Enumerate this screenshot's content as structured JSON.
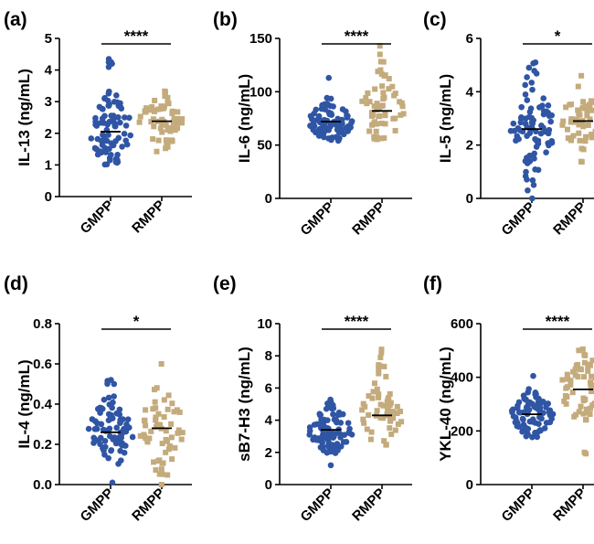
{
  "figure": {
    "colors": {
      "GMPP": "#2f55a4",
      "RMPP": "#c4ab7c",
      "axis": "#000000"
    }
  },
  "chart_data": [
    {
      "panel": "(a)",
      "type": "scatter",
      "categories": [
        "GMPP",
        "RMPP"
      ],
      "ylabel": "IL-13 (ng/mL)",
      "ylim": [
        0,
        5
      ],
      "yticks": [
        0,
        1,
        2,
        3,
        4,
        5
      ],
      "ytick_labels": [
        "0",
        "1",
        "2",
        "3",
        "4",
        "5"
      ],
      "series": [
        {
          "name": "GMPP",
          "median": 2.05,
          "range": [
            1.0,
            4.35
          ],
          "n": 85,
          "outliers": [
            4.35,
            4.25,
            4.2,
            3.2,
            3.1
          ]
        },
        {
          "name": "RMPP",
          "median": 2.38,
          "range": [
            1.05,
            3.45
          ],
          "n": 60,
          "outliers": []
        }
      ],
      "significance": "****"
    },
    {
      "panel": "(b)",
      "type": "scatter",
      "categories": [
        "GMPP",
        "RMPP"
      ],
      "ylabel": "IL-6 (ng/mL)",
      "ylim": [
        0,
        150
      ],
      "yticks": [
        0,
        50,
        100,
        150
      ],
      "ytick_labels": [
        "0",
        "50",
        "100",
        "150"
      ],
      "series": [
        {
          "name": "GMPP",
          "median": 72,
          "range": [
            54,
            113
          ],
          "n": 85,
          "outliers": [
            113
          ]
        },
        {
          "name": "RMPP",
          "median": 82,
          "range": [
            55,
            143
          ],
          "n": 60,
          "outliers": [
            143,
            135,
            128
          ]
        }
      ],
      "significance": "****"
    },
    {
      "panel": "(c)",
      "type": "scatter",
      "categories": [
        "GMPP",
        "RMPP"
      ],
      "ylabel": "IL-5 (ng/mL)",
      "ylim": [
        0,
        6
      ],
      "yticks": [
        0,
        2,
        4,
        6
      ],
      "ytick_labels": [
        "0",
        "2",
        "4",
        "6"
      ],
      "series": [
        {
          "name": "GMPP",
          "median": 2.6,
          "range": [
            0.0,
            5.1
          ],
          "n": 85,
          "outliers": [
            5.1,
            4.9,
            0.0,
            0.3
          ]
        },
        {
          "name": "RMPP",
          "median": 2.9,
          "range": [
            1.3,
            4.6
          ],
          "n": 60,
          "outliers": [
            4.6
          ]
        }
      ],
      "significance": "*"
    },
    {
      "panel": "(d)",
      "type": "scatter",
      "categories": [
        "GMPP",
        "RMPP"
      ],
      "ylabel": "IL-4 (ng/mL)",
      "ylim": [
        0,
        0.8
      ],
      "yticks": [
        0,
        0.2,
        0.4,
        0.6,
        0.8
      ],
      "ytick_labels": [
        "0.0",
        "0.2",
        "0.4",
        "0.6",
        "0.8"
      ],
      "series": [
        {
          "name": "GMPP",
          "median": 0.26,
          "range": [
            0.01,
            0.52
          ],
          "n": 85,
          "outliers": [
            0.52,
            0.5,
            0.01
          ]
        },
        {
          "name": "RMPP",
          "median": 0.28,
          "range": [
            0.0,
            0.6
          ],
          "n": 60,
          "outliers": [
            0.6,
            0.0
          ]
        }
      ],
      "significance": "*"
    },
    {
      "panel": "(e)",
      "type": "scatter",
      "categories": [
        "GMPP",
        "RMPP"
      ],
      "ylabel": "sB7-H3 (ng/mL)",
      "ylim": [
        0,
        10
      ],
      "yticks": [
        0,
        2,
        4,
        6,
        8,
        10
      ],
      "ytick_labels": [
        "0",
        "2",
        "4",
        "6",
        "8",
        "10"
      ],
      "series": [
        {
          "name": "GMPP",
          "median": 3.4,
          "range": [
            1.2,
            5.3
          ],
          "n": 85,
          "outliers": [
            1.2
          ]
        },
        {
          "name": "RMPP",
          "median": 4.3,
          "range": [
            2.3,
            8.4
          ],
          "n": 60,
          "outliers": [
            8.4,
            8.2,
            7.9
          ]
        }
      ],
      "significance": "****"
    },
    {
      "panel": "(f)",
      "type": "scatter",
      "categories": [
        "GMPP",
        "RMPP"
      ],
      "ylabel": "YKL-40 (ng/mL)",
      "ylim": [
        0,
        600
      ],
      "yticks": [
        0,
        200,
        400,
        600
      ],
      "ytick_labels": [
        "0",
        "200",
        "400",
        "600"
      ],
      "series": [
        {
          "name": "GMPP",
          "median": 262,
          "range": [
            175,
            405
          ],
          "n": 85,
          "outliers": [
            405
          ]
        },
        {
          "name": "RMPP",
          "median": 355,
          "range": [
            115,
            505
          ],
          "n": 60,
          "outliers": [
            505,
            120,
            115
          ]
        }
      ],
      "significance": "****"
    }
  ]
}
